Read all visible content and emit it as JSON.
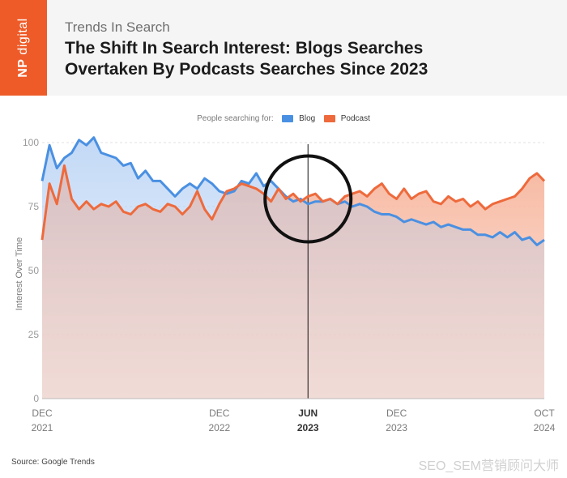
{
  "brand": {
    "logo_np": "NP",
    "logo_word": "digital",
    "color": "#ee5b28"
  },
  "header": {
    "subtitle": "Trends In Search",
    "title_line1": "The Shift In Search Interest: Blogs Searches",
    "title_line2": "Overtaken By Podcasts Searches Since 2023"
  },
  "legend": {
    "prefix": "People searching for:",
    "items": [
      {
        "label": "Blog",
        "color": "#4a90e2"
      },
      {
        "label": "Podcast",
        "color": "#ee6a3c"
      }
    ]
  },
  "footer": {
    "source": "Source: Google Trends",
    "watermark": "SEO_SEM营销顾问大师"
  },
  "chart_data": {
    "type": "line",
    "ylabel": "Interest Over Time",
    "ylim": [
      0,
      100
    ],
    "yticks": [
      0,
      25,
      50,
      75,
      100
    ],
    "xlim": [
      0,
      34
    ],
    "xticks": [
      {
        "x": 0,
        "line1": "DEC",
        "line2": "2021",
        "bold": false
      },
      {
        "x": 12,
        "line1": "DEC",
        "line2": "2022",
        "bold": false
      },
      {
        "x": 18,
        "line1": "JUN",
        "line2": "2023",
        "bold": true
      },
      {
        "x": 24,
        "line1": "DEC",
        "line2": "2023",
        "bold": false
      },
      {
        "x": 34,
        "line1": "OCT",
        "line2": "2024",
        "bold": false
      }
    ],
    "x_unit": "months since Dec 2021",
    "highlight": {
      "x": 18,
      "label": "Jun 2023"
    },
    "series": [
      {
        "name": "Blog",
        "color": "#4a90e2",
        "x": [
          0,
          0.5,
          1,
          1.5,
          2,
          2.5,
          3,
          3.5,
          4,
          4.5,
          5,
          5.5,
          6,
          6.5,
          7,
          7.5,
          8,
          8.5,
          9,
          9.5,
          10,
          10.5,
          11,
          11.5,
          12,
          12.5,
          13,
          13.5,
          14,
          14.5,
          15,
          15.5,
          16,
          16.5,
          17,
          17.5,
          18,
          18.5,
          19,
          19.5,
          20,
          20.5,
          21,
          21.5,
          22,
          22.5,
          23,
          23.5,
          24,
          24.5,
          25,
          25.5,
          26,
          26.5,
          27,
          27.5,
          28,
          28.5,
          29,
          29.5,
          30,
          30.5,
          31,
          31.5,
          32,
          32.5,
          33,
          33.5,
          34
        ],
        "values": [
          85,
          99,
          90,
          94,
          96,
          101,
          99,
          102,
          96,
          95,
          94,
          91,
          92,
          86,
          89,
          85,
          85,
          82,
          79,
          82,
          84,
          82,
          86,
          84,
          81,
          80,
          81,
          85,
          84,
          88,
          83,
          85,
          82,
          79,
          77,
          78,
          76,
          77,
          77,
          78,
          76,
          77,
          75,
          76,
          75,
          73,
          72,
          72,
          71,
          69,
          70,
          69,
          68,
          69,
          67,
          68,
          67,
          66,
          66,
          64,
          64,
          63,
          65,
          63,
          65,
          62,
          63,
          60,
          62
        ]
      },
      {
        "name": "Podcast",
        "color": "#ee6a3c",
        "x": [
          0,
          0.5,
          1,
          1.5,
          2,
          2.5,
          3,
          3.5,
          4,
          4.5,
          5,
          5.5,
          6,
          6.5,
          7,
          7.5,
          8,
          8.5,
          9,
          9.5,
          10,
          10.5,
          11,
          11.5,
          12,
          12.5,
          13,
          13.5,
          14,
          14.5,
          15,
          15.5,
          16,
          16.5,
          17,
          17.5,
          18,
          18.5,
          19,
          19.5,
          20,
          20.5,
          21,
          21.5,
          22,
          22.5,
          23,
          23.5,
          24,
          24.5,
          25,
          25.5,
          26,
          26.5,
          27,
          27.5,
          28,
          28.5,
          29,
          29.5,
          30,
          30.5,
          31,
          31.5,
          32,
          32.5,
          33,
          33.5,
          34
        ],
        "values": [
          62,
          84,
          76,
          91,
          78,
          74,
          77,
          74,
          76,
          75,
          77,
          73,
          72,
          75,
          76,
          74,
          73,
          76,
          75,
          72,
          75,
          81,
          74,
          70,
          76,
          81,
          82,
          84,
          83,
          82,
          80,
          77,
          82,
          78,
          80,
          77,
          79,
          80,
          77,
          78,
          76,
          79,
          80,
          81,
          79,
          82,
          84,
          80,
          78,
          82,
          78,
          80,
          81,
          77,
          76,
          79,
          77,
          78,
          75,
          77,
          74,
          76,
          77,
          78,
          79,
          82,
          86,
          88,
          85
        ]
      }
    ]
  }
}
